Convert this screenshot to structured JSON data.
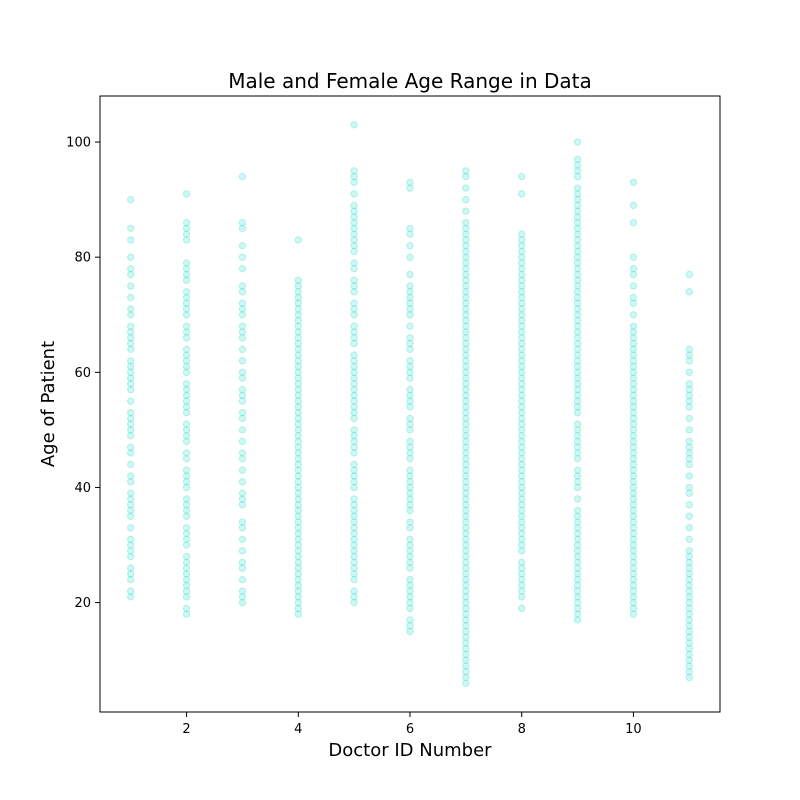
{
  "chart_data": {
    "type": "scatter",
    "title": "Male and Female Age Range in Data",
    "xlabel": "Doctor ID Number",
    "ylabel": "Age of Patient",
    "xlim": [
      0.45,
      11.55
    ],
    "ylim": [
      1,
      108
    ],
    "xticks": [
      2,
      4,
      6,
      8,
      10
    ],
    "yticks": [
      20,
      40,
      60,
      80,
      100
    ],
    "grid": false,
    "marker_color": "#40e0d0",
    "marker_alpha": 0.25,
    "series": [
      {
        "points_by_x": [
          {
            "x": 1,
            "y": [
              21,
              22,
              24,
              25,
              26,
              28,
              29,
              30,
              31,
              33,
              35,
              36,
              37,
              38,
              39,
              41,
              42,
              44,
              46,
              47,
              49,
              50,
              51,
              52,
              53,
              55,
              57,
              58,
              59,
              60,
              61,
              62,
              64,
              65,
              66,
              67,
              68,
              70,
              71,
              73,
              75,
              77,
              78,
              80,
              83,
              85,
              90
            ]
          },
          {
            "x": 2,
            "y": [
              18,
              19,
              21,
              22,
              23,
              24,
              25,
              26,
              27,
              28,
              30,
              31,
              32,
              33,
              35,
              36,
              37,
              38,
              40,
              41,
              42,
              43,
              45,
              46,
              48,
              49,
              50,
              51,
              53,
              54,
              55,
              56,
              57,
              58,
              60,
              61,
              62,
              63,
              64,
              66,
              67,
              68,
              70,
              71,
              72,
              73,
              74,
              76,
              77,
              78,
              79,
              83,
              84,
              85,
              86,
              91
            ]
          },
          {
            "x": 3,
            "y": [
              20,
              21,
              22,
              24,
              26,
              27,
              29,
              31,
              33,
              34,
              37,
              38,
              39,
              41,
              43,
              45,
              46,
              48,
              50,
              52,
              53,
              55,
              56,
              57,
              59,
              60,
              62,
              64,
              66,
              67,
              68,
              70,
              71,
              72,
              74,
              75,
              78,
              80,
              82,
              85,
              86,
              94
            ]
          },
          {
            "x": 4,
            "y": [
              18,
              19,
              20,
              21,
              22,
              23,
              24,
              25,
              26,
              27,
              28,
              29,
              30,
              31,
              32,
              33,
              34,
              35,
              36,
              37,
              38,
              39,
              40,
              41,
              42,
              43,
              44,
              45,
              46,
              47,
              48,
              49,
              50,
              51,
              52,
              53,
              54,
              55,
              56,
              57,
              58,
              59,
              60,
              61,
              62,
              63,
              64,
              65,
              66,
              67,
              68,
              69,
              70,
              71,
              72,
              73,
              74,
              75,
              76,
              83
            ]
          },
          {
            "x": 5,
            "y": [
              20,
              21,
              22,
              24,
              25,
              26,
              27,
              28,
              29,
              30,
              31,
              32,
              33,
              34,
              35,
              36,
              37,
              38,
              40,
              41,
              42,
              43,
              44,
              46,
              47,
              48,
              49,
              50,
              52,
              53,
              54,
              55,
              56,
              57,
              58,
              59,
              60,
              61,
              62,
              63,
              65,
              66,
              67,
              68,
              70,
              71,
              72,
              74,
              75,
              76,
              78,
              79,
              81,
              82,
              83,
              84,
              85,
              86,
              87,
              88,
              89,
              91,
              93,
              94,
              95,
              103
            ]
          },
          {
            "x": 6,
            "y": [
              15,
              16,
              17,
              19,
              20,
              21,
              22,
              23,
              24,
              26,
              27,
              28,
              29,
              30,
              31,
              33,
              34,
              36,
              37,
              38,
              39,
              40,
              41,
              42,
              43,
              45,
              46,
              47,
              48,
              50,
              51,
              52,
              54,
              55,
              56,
              57,
              59,
              60,
              61,
              62,
              64,
              65,
              66,
              68,
              70,
              71,
              72,
              73,
              74,
              75,
              77,
              80,
              82,
              84,
              85,
              92,
              93
            ]
          },
          {
            "x": 7,
            "y": [
              6,
              7,
              8,
              9,
              10,
              11,
              12,
              13,
              14,
              15,
              16,
              17,
              18,
              19,
              20,
              21,
              22,
              23,
              24,
              25,
              26,
              27,
              28,
              29,
              30,
              31,
              32,
              33,
              34,
              35,
              36,
              37,
              38,
              39,
              40,
              41,
              42,
              43,
              44,
              45,
              46,
              47,
              48,
              49,
              50,
              51,
              52,
              53,
              54,
              55,
              56,
              57,
              58,
              59,
              60,
              61,
              62,
              63,
              64,
              65,
              66,
              67,
              68,
              69,
              70,
              71,
              72,
              73,
              74,
              75,
              76,
              77,
              78,
              79,
              80,
              81,
              82,
              83,
              84,
              85,
              86,
              88,
              90,
              92,
              94,
              95
            ]
          },
          {
            "x": 8,
            "y": [
              19,
              21,
              22,
              23,
              24,
              25,
              26,
              27,
              29,
              30,
              31,
              32,
              33,
              34,
              35,
              36,
              37,
              38,
              39,
              40,
              41,
              42,
              43,
              44,
              45,
              46,
              47,
              48,
              49,
              50,
              51,
              52,
              53,
              54,
              55,
              56,
              57,
              58,
              59,
              60,
              61,
              62,
              63,
              64,
              65,
              66,
              67,
              68,
              69,
              70,
              71,
              72,
              73,
              74,
              75,
              76,
              77,
              78,
              79,
              80,
              81,
              82,
              83,
              84,
              91,
              94
            ]
          },
          {
            "x": 9,
            "y": [
              17,
              18,
              19,
              20,
              21,
              22,
              23,
              24,
              25,
              26,
              27,
              28,
              29,
              30,
              31,
              32,
              33,
              34,
              35,
              36,
              38,
              40,
              41,
              42,
              43,
              45,
              46,
              47,
              48,
              49,
              50,
              51,
              53,
              54,
              55,
              56,
              57,
              58,
              59,
              60,
              61,
              62,
              63,
              64,
              65,
              66,
              67,
              68,
              69,
              70,
              71,
              72,
              73,
              74,
              75,
              76,
              77,
              78,
              79,
              80,
              81,
              82,
              83,
              84,
              85,
              86,
              87,
              88,
              89,
              90,
              91,
              92,
              94,
              95,
              96,
              97,
              100
            ]
          },
          {
            "x": 10,
            "y": [
              18,
              19,
              20,
              21,
              22,
              23,
              24,
              25,
              26,
              27,
              28,
              29,
              30,
              31,
              32,
              33,
              34,
              35,
              36,
              37,
              38,
              39,
              40,
              41,
              42,
              43,
              44,
              45,
              46,
              47,
              48,
              49,
              50,
              51,
              52,
              53,
              54,
              55,
              56,
              57,
              58,
              59,
              60,
              61,
              62,
              63,
              64,
              65,
              66,
              67,
              68,
              70,
              72,
              73,
              75,
              77,
              78,
              80,
              86,
              89,
              93
            ]
          },
          {
            "x": 11,
            "y": [
              7,
              8,
              9,
              10,
              11,
              12,
              13,
              14,
              15,
              16,
              17,
              18,
              19,
              20,
              21,
              22,
              23,
              24,
              25,
              26,
              27,
              28,
              29,
              31,
              33,
              35,
              37,
              39,
              40,
              42,
              44,
              45,
              46,
              47,
              48,
              50,
              52,
              54,
              55,
              56,
              57,
              58,
              60,
              62,
              63,
              64,
              74,
              77
            ]
          }
        ]
      }
    ]
  }
}
